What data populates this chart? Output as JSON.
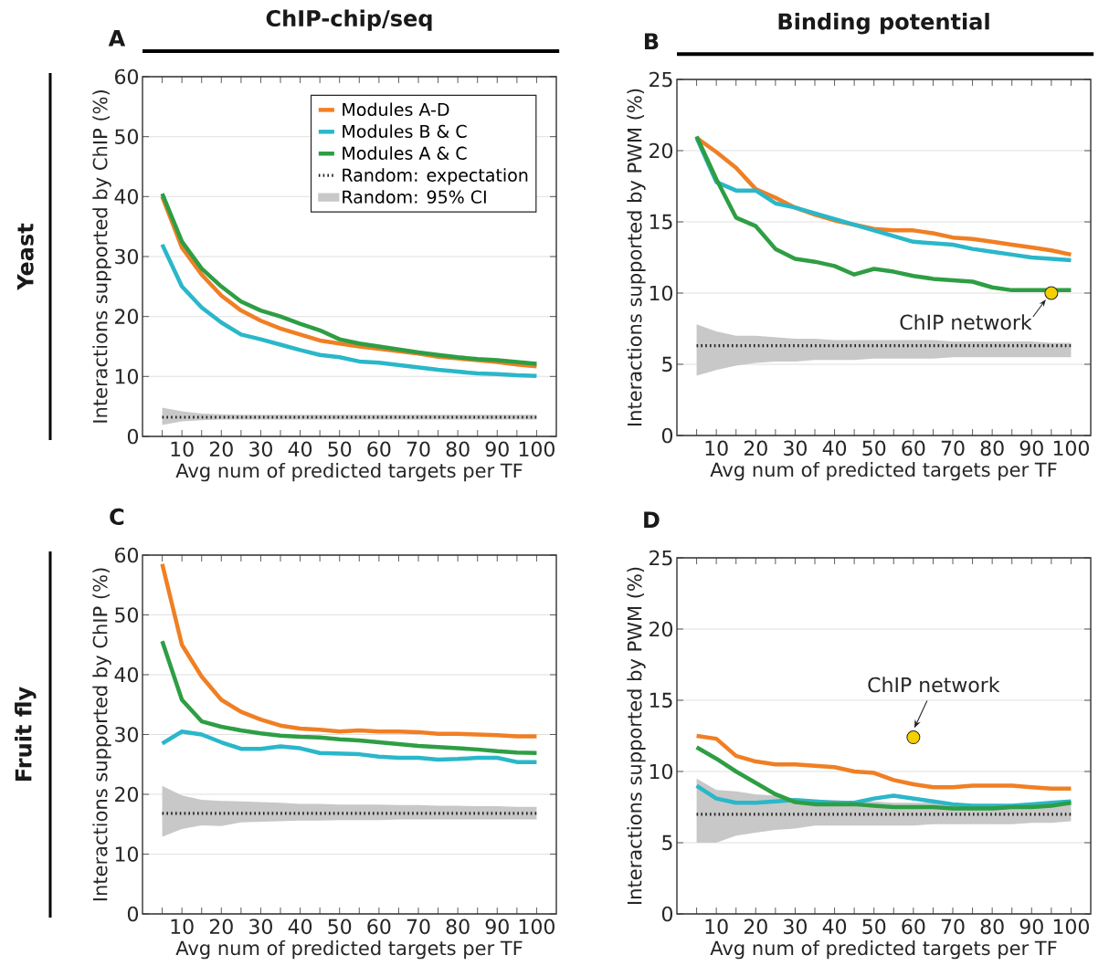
{
  "chart_data": [
    {
      "type": "line",
      "title": "A",
      "subtitle": "ChIP-chip/seq",
      "annotations": [
        "Yeast",
        "Random: 95% CI"
      ],
      "xlabel": "Avg num of predicted targets per TF",
      "ylabel": "Interactions supported by ChIP (%)",
      "x": [
        5,
        10,
        15,
        20,
        25,
        30,
        35,
        40,
        45,
        50,
        55,
        60,
        65,
        70,
        75,
        80,
        85,
        90,
        95,
        100
      ],
      "xlim": [
        0,
        105
      ],
      "xticks": [
        {
          "value": 5,
          "label": null
        },
        10,
        {
          "value": 15,
          "label": null
        },
        20,
        {
          "value": 25,
          "label": null
        },
        30,
        {
          "value": 35,
          "label": null
        },
        40,
        {
          "value": 45,
          "label": null
        },
        50,
        {
          "value": 55,
          "label": null
        },
        60,
        {
          "value": 65,
          "label": null
        },
        70,
        {
          "value": 75,
          "label": null
        },
        80,
        {
          "value": 85,
          "label": null
        },
        90,
        {
          "value": 95,
          "label": null
        },
        100
      ],
      "ylim": [
        0,
        60
      ],
      "yticks": [
        0,
        10,
        20,
        30,
        40,
        50,
        60
      ],
      "grid": "y",
      "legend": "top right",
      "series": [
        {
          "name": "Modules A-D",
          "color": "#f07f24",
          "values": [
            40,
            31.5,
            27,
            23.5,
            21,
            19.3,
            18,
            17,
            16,
            15.5,
            15,
            14.6,
            14.2,
            13.8,
            13.3,
            13,
            12.7,
            12.4,
            12,
            11.7
          ]
        },
        {
          "name": "Modules B & C",
          "color": "#2ab7c9",
          "values": [
            32,
            25,
            21.5,
            19,
            17,
            16.2,
            15.3,
            14.4,
            13.6,
            13.2,
            12.5,
            12.3,
            11.9,
            11.5,
            11.1,
            10.8,
            10.5,
            10.4,
            10.2,
            10.1
          ]
        },
        {
          "name": "Modules A & C",
          "color": "#2e9e44",
          "values": [
            40.5,
            32.5,
            28,
            25,
            22.5,
            21,
            20,
            18.8,
            17.7,
            16.2,
            15.5,
            15,
            14.5,
            14,
            13.6,
            13.2,
            12.9,
            12.7,
            12.4,
            12.1
          ]
        },
        {
          "name": "Random: expectation",
          "color": "#222222",
          "line_style": "dotted",
          "values": [
            3.2,
            3.2,
            3.2,
            3.2,
            3.2,
            3.2,
            3.2,
            3.2,
            3.2,
            3.2,
            3.2,
            3.2,
            3.2,
            3.2,
            3.2,
            3.2,
            3.2,
            3.2,
            3.2,
            3.2
          ],
          "lower": [
            1.9,
            2.5,
            2.7,
            2.8,
            2.8,
            2.8,
            2.8,
            2.8,
            2.8,
            2.8,
            2.8,
            2.8,
            2.8,
            2.8,
            2.8,
            2.8,
            2.8,
            2.8,
            2.8,
            2.8
          ],
          "upper": [
            4.8,
            4.2,
            3.8,
            3.7,
            3.6,
            3.6,
            3.6,
            3.6,
            3.6,
            3.6,
            3.6,
            3.6,
            3.6,
            3.6,
            3.6,
            3.6,
            3.6,
            3.6,
            3.6,
            3.6
          ]
        }
      ]
    },
    {
      "type": "line",
      "title": "B",
      "subtitle": "Binding potential",
      "annotations": [
        {
          "text": "ChIP network",
          "x": 95,
          "y": 10
        }
      ],
      "xlabel": "Avg num of predicted targets per TF",
      "ylabel": "Interactions supported by PWM (%)",
      "x": [
        5,
        10,
        15,
        20,
        25,
        30,
        35,
        40,
        45,
        50,
        55,
        60,
        65,
        70,
        75,
        80,
        85,
        90,
        95,
        100
      ],
      "xlim": [
        0,
        105
      ],
      "xticks": [
        {
          "value": 5,
          "label": null
        },
        10,
        {
          "value": 15,
          "label": null
        },
        20,
        {
          "value": 25,
          "label": null
        },
        30,
        {
          "value": 35,
          "label": null
        },
        40,
        {
          "value": 45,
          "label": null
        },
        50,
        {
          "value": 55,
          "label": null
        },
        60,
        {
          "value": 65,
          "label": null
        },
        70,
        {
          "value": 75,
          "label": null
        },
        80,
        {
          "value": 85,
          "label": null
        },
        90,
        {
          "value": 95,
          "label": null
        },
        100
      ],
      "ylim": [
        0,
        25
      ],
      "yticks": [
        0,
        5,
        10,
        15,
        20,
        25
      ],
      "grid": "y",
      "series": [
        {
          "color": "#f07f24",
          "values": [
            20.9,
            19.9,
            18.8,
            17.3,
            16.7,
            16.0,
            15.5,
            15.1,
            14.8,
            14.5,
            14.4,
            14.4,
            14.2,
            13.9,
            13.8,
            13.6,
            13.4,
            13.2,
            13.0,
            12.7
          ]
        },
        {
          "color": "#2ab7c9",
          "values": [
            20.9,
            17.8,
            17.2,
            17.2,
            16.3,
            16.0,
            15.6,
            15.2,
            14.8,
            14.4,
            14.0,
            13.6,
            13.5,
            13.4,
            13.1,
            12.9,
            12.7,
            12.5,
            12.4,
            12.3
          ]
        },
        {
          "color": "#2e9e44",
          "values": [
            21.0,
            18.0,
            15.3,
            14.7,
            13.1,
            12.4,
            12.2,
            11.9,
            11.3,
            11.7,
            11.5,
            11.2,
            11.0,
            10.9,
            10.8,
            10.4,
            10.2,
            10.2,
            10.2,
            10.2
          ]
        },
        {
          "color": "#222222",
          "line_style": "dotted",
          "values": [
            6.3,
            6.3,
            6.3,
            6.3,
            6.3,
            6.3,
            6.3,
            6.3,
            6.3,
            6.3,
            6.3,
            6.3,
            6.3,
            6.3,
            6.3,
            6.3,
            6.3,
            6.3,
            6.3,
            6.3
          ],
          "lower": [
            4.2,
            4.6,
            4.9,
            5.1,
            5.2,
            5.2,
            5.3,
            5.3,
            5.3,
            5.4,
            5.4,
            5.4,
            5.4,
            5.5,
            5.5,
            5.5,
            5.5,
            5.5,
            5.5,
            5.5
          ],
          "upper": [
            7.8,
            7.3,
            7.0,
            7.0,
            6.9,
            6.8,
            6.8,
            6.7,
            6.7,
            6.7,
            6.7,
            6.7,
            6.7,
            6.6,
            6.6,
            6.6,
            6.6,
            6.6,
            6.5,
            6.5
          ]
        },
        {
          "type": "scatter",
          "marker": "circle",
          "color": "#f5d000",
          "x": [
            95
          ],
          "values": [
            10
          ]
        }
      ]
    },
    {
      "type": "line",
      "title": "C",
      "annotations": [
        "Fruit fly"
      ],
      "xlabel": "Avg num of predicted targets per TF",
      "ylabel": "Interactions supported by ChIP (%)",
      "x": [
        5,
        10,
        15,
        20,
        25,
        30,
        35,
        40,
        45,
        50,
        55,
        60,
        65,
        70,
        75,
        80,
        85,
        90,
        95,
        100
      ],
      "xlim": [
        0,
        105
      ],
      "xticks": [
        {
          "value": 5,
          "label": null
        },
        10,
        {
          "value": 15,
          "label": null
        },
        20,
        {
          "value": 25,
          "label": null
        },
        30,
        {
          "value": 35,
          "label": null
        },
        40,
        {
          "value": 45,
          "label": null
        },
        50,
        {
          "value": 55,
          "label": null
        },
        60,
        {
          "value": 65,
          "label": null
        },
        70,
        {
          "value": 75,
          "label": null
        },
        80,
        {
          "value": 85,
          "label": null
        },
        90,
        {
          "value": 95,
          "label": null
        },
        100
      ],
      "ylim": [
        0,
        60
      ],
      "yticks": [
        0,
        10,
        20,
        30,
        40,
        50,
        60
      ],
      "grid": "y",
      "series": [
        {
          "color": "#f07f24",
          "values": [
            58.5,
            45,
            39.7,
            35.8,
            33.8,
            32.5,
            31.5,
            31.0,
            30.8,
            30.5,
            30.7,
            30.5,
            30.5,
            30.4,
            30.1,
            30.1,
            30.0,
            29.9,
            29.7,
            29.7
          ]
        },
        {
          "color": "#2ab7c9",
          "values": [
            28.5,
            30.5,
            30.0,
            28.7,
            27.6,
            27.6,
            28.0,
            27.7,
            26.9,
            26.8,
            26.7,
            26.3,
            26.1,
            26.1,
            25.8,
            25.9,
            26.1,
            26.1,
            25.4,
            25.4
          ]
        },
        {
          "color": "#2e9e44",
          "values": [
            45.6,
            35.8,
            32.2,
            31.3,
            30.7,
            30.2,
            29.8,
            29.6,
            29.5,
            29.2,
            29.0,
            28.7,
            28.4,
            28.1,
            27.9,
            27.7,
            27.5,
            27.2,
            27.0,
            26.9
          ]
        },
        {
          "color": "#222222",
          "line_style": "dotted",
          "values": [
            16.8,
            16.8,
            16.8,
            16.8,
            16.8,
            16.8,
            16.8,
            16.8,
            16.8,
            16.8,
            16.8,
            16.8,
            16.8,
            16.8,
            16.8,
            16.8,
            16.8,
            16.8,
            16.8,
            16.8
          ],
          "lower": [
            12.9,
            14.2,
            14.8,
            14.7,
            15.3,
            15.4,
            15.5,
            15.6,
            15.6,
            15.7,
            15.7,
            15.7,
            15.8,
            15.8,
            15.8,
            15.8,
            15.8,
            15.8,
            15.8,
            15.8
          ],
          "upper": [
            21.4,
            19.8,
            19.1,
            18.9,
            18.8,
            18.7,
            18.6,
            18.4,
            18.4,
            18.3,
            18.3,
            18.3,
            18.2,
            18.2,
            18.1,
            18.1,
            18.0,
            18.0,
            17.9,
            17.9
          ]
        }
      ]
    },
    {
      "type": "line",
      "title": "D",
      "annotations": [
        {
          "text": "ChIP network",
          "x": 60,
          "y": 12.4
        }
      ],
      "xlabel": "Avg num of predicted targets per TF",
      "ylabel": "Interactions supported by PWM (%)",
      "x": [
        5,
        10,
        15,
        20,
        25,
        30,
        35,
        40,
        45,
        50,
        55,
        60,
        65,
        70,
        75,
        80,
        85,
        90,
        95,
        100
      ],
      "xlim": [
        0,
        105
      ],
      "xticks": [
        {
          "value": 5,
          "label": null
        },
        10,
        {
          "value": 15,
          "label": null
        },
        20,
        {
          "value": 25,
          "label": null
        },
        30,
        {
          "value": 35,
          "label": null
        },
        40,
        {
          "value": 45,
          "label": null
        },
        50,
        {
          "value": 55,
          "label": null
        },
        60,
        {
          "value": 65,
          "label": null
        },
        70,
        {
          "value": 75,
          "label": null
        },
        80,
        {
          "value": 85,
          "label": null
        },
        90,
        {
          "value": 95,
          "label": null
        },
        100
      ],
      "ylim": [
        0,
        25
      ],
      "yticks": [
        0,
        5,
        10,
        15,
        20,
        25
      ],
      "grid": "y",
      "series": [
        {
          "color": "#f07f24",
          "values": [
            12.5,
            12.3,
            11.1,
            10.7,
            10.5,
            10.5,
            10.4,
            10.3,
            10.0,
            9.9,
            9.4,
            9.1,
            8.9,
            8.9,
            9.0,
            9.0,
            9.0,
            8.9,
            8.8,
            8.8
          ]
        },
        {
          "color": "#2ab7c9",
          "values": [
            9.0,
            8.1,
            7.8,
            7.8,
            7.9,
            8.0,
            7.9,
            7.8,
            7.8,
            8.1,
            8.3,
            8.1,
            7.9,
            7.7,
            7.6,
            7.6,
            7.6,
            7.7,
            7.8,
            7.9
          ]
        },
        {
          "color": "#2e9e44",
          "values": [
            11.7,
            10.9,
            10.0,
            9.2,
            8.4,
            7.85,
            7.7,
            7.7,
            7.7,
            7.6,
            7.5,
            7.5,
            7.5,
            7.4,
            7.4,
            7.4,
            7.5,
            7.5,
            7.6,
            7.8
          ]
        },
        {
          "color": "#222222",
          "line_style": "dotted",
          "values": [
            7.0,
            7.0,
            7.0,
            7.0,
            7.0,
            7.0,
            7.0,
            7.0,
            7.0,
            7.0,
            7.0,
            7.0,
            7.0,
            7.0,
            7.0,
            7.0,
            7.0,
            7.0,
            7.0,
            7.0
          ],
          "lower": [
            5.0,
            5.0,
            5.5,
            5.7,
            5.9,
            6.0,
            6.2,
            6.2,
            6.2,
            6.2,
            6.2,
            6.2,
            6.3,
            6.3,
            6.3,
            6.3,
            6.3,
            6.4,
            6.4,
            6.5
          ],
          "upper": [
            9.5,
            8.7,
            8.6,
            8.4,
            8.3,
            8.1,
            8.0,
            8.0,
            7.9,
            7.9,
            7.8,
            7.8,
            7.8,
            7.7,
            7.7,
            7.7,
            7.7,
            7.7,
            7.7,
            7.7
          ]
        },
        {
          "type": "scatter",
          "marker": "circle",
          "color": "#f5d000",
          "x": [
            60
          ],
          "values": [
            12.4
          ]
        }
      ]
    }
  ]
}
